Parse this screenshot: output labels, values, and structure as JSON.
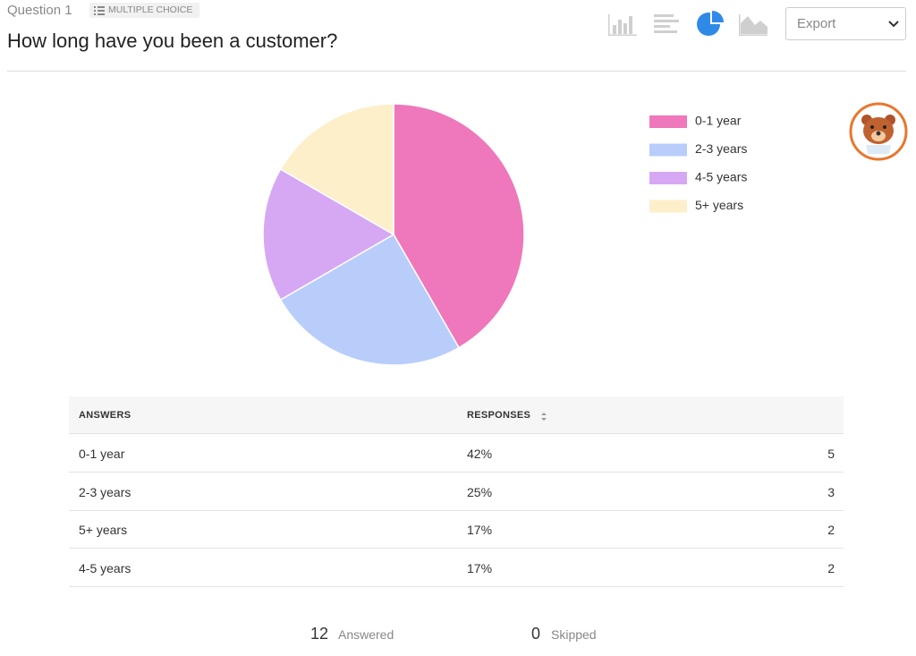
{
  "header": {
    "question": "Question 1",
    "badge": "MULTIPLE CHOICE",
    "title": "How long have you been a customer?",
    "export": "Export"
  },
  "chart_data": {
    "type": "pie",
    "categories": [
      "0-1 year",
      "2-3 years",
      "4-5 years",
      "5+ years"
    ],
    "values": [
      5,
      3,
      2,
      2
    ],
    "colors": [
      "#ef77bb",
      "#b9cdfb",
      "#d6a8f4",
      "#feefcb"
    ],
    "legend": "right"
  },
  "table": {
    "headers": [
      "ANSWERS",
      "RESPONSES"
    ],
    "rows": [
      [
        "0-1 year",
        "42%",
        5
      ],
      [
        "2-3 years",
        "25%",
        3
      ],
      [
        "5+ years",
        "17%",
        2
      ],
      [
        "4-5 years",
        "17%",
        2
      ]
    ]
  },
  "summary": {
    "answered": 12,
    "answered_label": "Answered",
    "skipped": 0,
    "skipped_label": "Skipped"
  }
}
